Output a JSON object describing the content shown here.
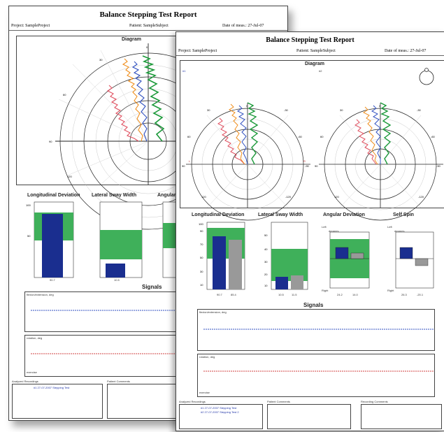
{
  "back_page": {
    "title": "Balance Stepping Test Report",
    "project": "Project: SampleProject",
    "patient": "Patient: SampleSubject",
    "date": "Date of meas.: 27-Jul-07",
    "diagram_title": "Diagram",
    "metric_titles": [
      "Longitudinal Deviation",
      "Lateral Sway Width",
      "Angular"
    ],
    "metric_values": [
      "90.7",
      "10.5"
    ],
    "signals_title": "Signals",
    "signal_labels": [
      "flexion/extension, deg",
      "rotation, deg"
    ],
    "exercise_label": "exercise",
    "analyzed_label": "Analyzed Recordings",
    "recording_line": "#1 27-07-2007 Stepping Test",
    "patient_comments": "Patient Comments"
  },
  "front_page": {
    "title": "Balance Stepping Test Report",
    "project": "Project: SampleProject",
    "patient": "Patient: SampleSubject",
    "date": "Date of meas.: 27-Jul-07",
    "diagram_title": "Diagram",
    "left_marker": "#1",
    "right_marker": "#2",
    "metric_titles": [
      "Longitudinal Deviation",
      "Lateral Sway Width",
      "Angular Deviation",
      "Self Spin"
    ],
    "long_values": [
      "90.7",
      "85.4"
    ],
    "lat_values": [
      "10.5",
      "11.5"
    ],
    "ang_values": [
      "24.2",
      "14.0"
    ],
    "spin_values": [
      "26.3",
      "-20.1"
    ],
    "left_label": "Left",
    "right_label": "Right",
    "degrees_label": "degrees",
    "signals_title": "Signals",
    "signal_labels": [
      "flexion/extension, deg",
      "rotation, deg"
    ],
    "exercise_label": "exercise",
    "analyzed_label": "Analyzed Recordings",
    "recording_lines": [
      "#1 27-07-2007 Stepping Test",
      "#2 27-07-2007 Stepping Test 2"
    ],
    "patient_comments": "Patient Comments",
    "recording_comments": "Recording Comments"
  }
}
